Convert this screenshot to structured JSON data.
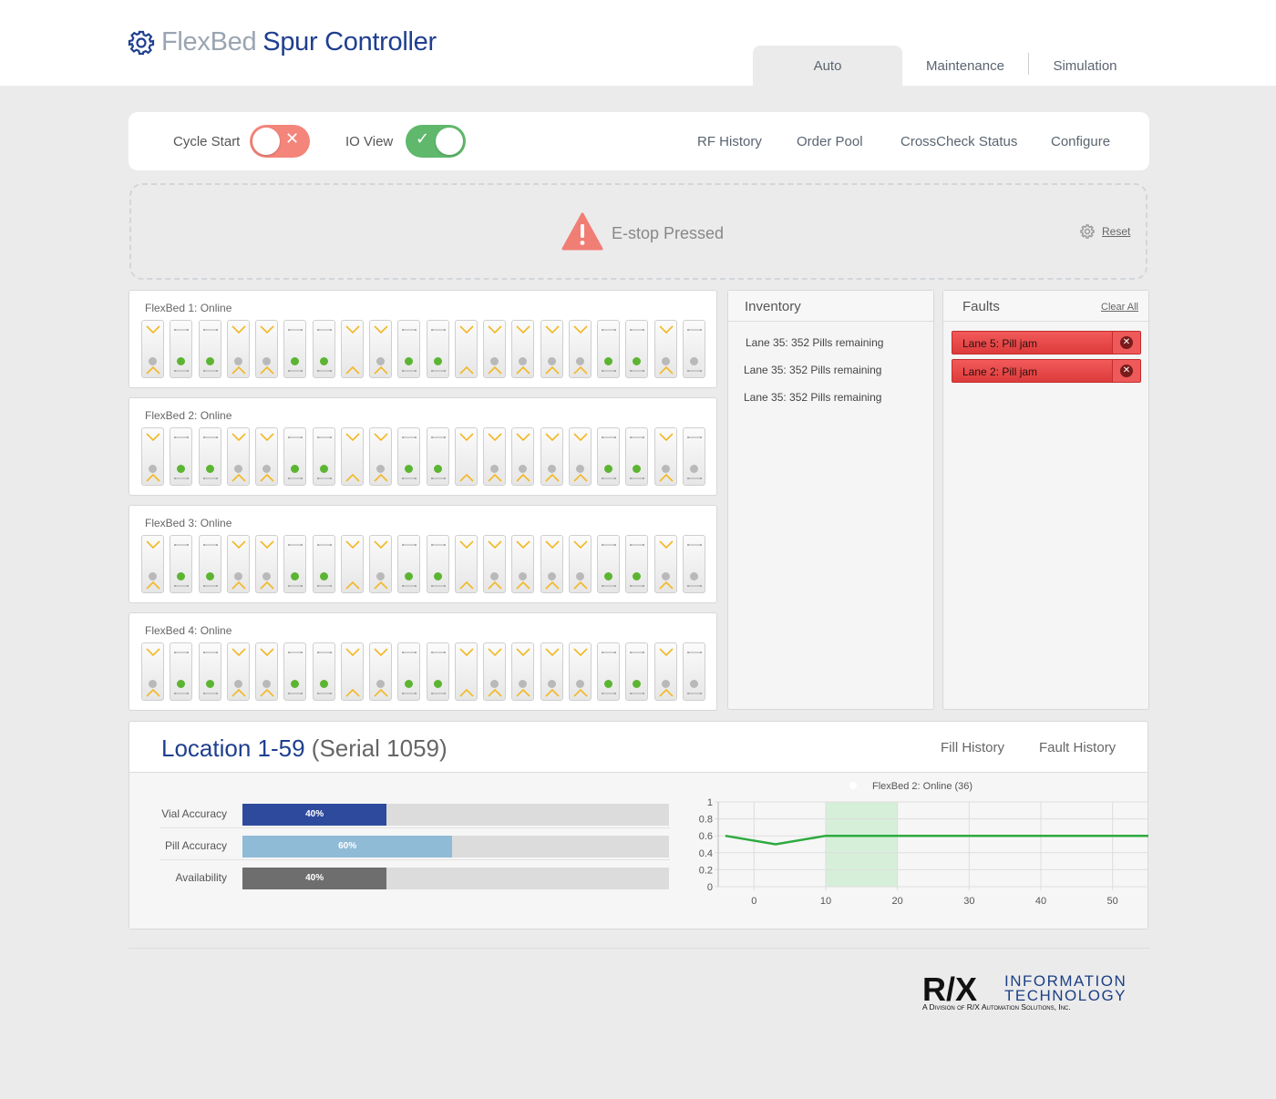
{
  "app": {
    "brand_light": "FlexBed",
    "brand_dark": "Spur Controller",
    "brand_icon": "gear-icon"
  },
  "main_tabs": [
    {
      "label": "Auto",
      "active": true
    },
    {
      "label": "Maintenance",
      "active": false
    },
    {
      "label": "Simulation",
      "active": false
    }
  ],
  "toolbar": {
    "cycle_start_label": "Cycle Start",
    "cycle_start_state": "off",
    "io_view_label": "IO View",
    "io_view_state": "on",
    "links": [
      "RF History",
      "Order Pool",
      "CrossCheck Status",
      "Configure"
    ]
  },
  "alert": {
    "text": "E-stop Pressed",
    "icon": "warning-icon",
    "reset_label": "Reset"
  },
  "beds": [
    {
      "title": "FlexBed 1: Online"
    },
    {
      "title": "FlexBed 2: Online"
    },
    {
      "title": "FlexBed 3: Online"
    },
    {
      "title": "FlexBed 4: Online"
    }
  ],
  "lane_states": [
    "y",
    "l",
    "l",
    "y",
    "y",
    "l",
    "l",
    "y",
    "y",
    "l",
    "l",
    "y",
    "y",
    "y",
    "y",
    "y",
    "l",
    "l",
    "y",
    "l"
  ],
  "lane_dots": [
    "x",
    "g",
    "g",
    "x",
    "x",
    "g",
    "g",
    "",
    "x",
    "g",
    "g",
    "",
    "x",
    "x",
    "x",
    "x",
    "g",
    "g",
    "x",
    "x"
  ],
  "inventory": {
    "title": "Inventory",
    "items": [
      "Lane 35: 352 Pills remaining",
      "Lane 35: 352 Pills remaining",
      "Lane 35: 352 Pills remaining"
    ]
  },
  "faults": {
    "title": "Faults",
    "clear_label": "Clear All",
    "items": [
      "Lane 5: Pill jam",
      "Lane 2: Pill jam"
    ]
  },
  "location": {
    "title": "Location 1-59",
    "serial": "(Serial 1059)",
    "links": [
      "Fill History",
      "Fault History"
    ],
    "metrics": [
      {
        "label": "Vial Accuracy",
        "value": 0.4,
        "text": "40%",
        "color": "#2e4a9c"
      },
      {
        "label": "Pill Accuracy",
        "value": 0.6,
        "text": "60%",
        "color": "#8fbbd6"
      },
      {
        "label": "Availability",
        "value": 0.4,
        "text": "40%",
        "color": "#6e6e6e"
      }
    ]
  },
  "chart_data": {
    "type": "line",
    "title": "FlexBed 2: Online (36)",
    "xlim": [
      -5,
      55
    ],
    "ylim": [
      0,
      1
    ],
    "x_ticks": [
      0,
      10,
      20,
      30,
      40,
      50
    ],
    "y_ticks": [
      0,
      0.2,
      0.4,
      0.6,
      0.8,
      1
    ],
    "y_tick_labels": [
      "0",
      "0.2",
      "0.4",
      "0.6",
      "0.8",
      "1"
    ],
    "highlight_range": [
      10,
      20
    ],
    "series": [
      {
        "x": [
          -4,
          3,
          10,
          55
        ],
        "y": [
          0.6,
          0.5,
          0.6,
          0.6
        ],
        "color": "#2eaa3e"
      }
    ],
    "grid": true
  },
  "footer": {
    "logo_main": "R/X",
    "logo_line1": "INFORMATION",
    "logo_line2": "TECHNOLOGY",
    "logo_sub": "A Division of R/X Automation Solutions, Inc."
  }
}
